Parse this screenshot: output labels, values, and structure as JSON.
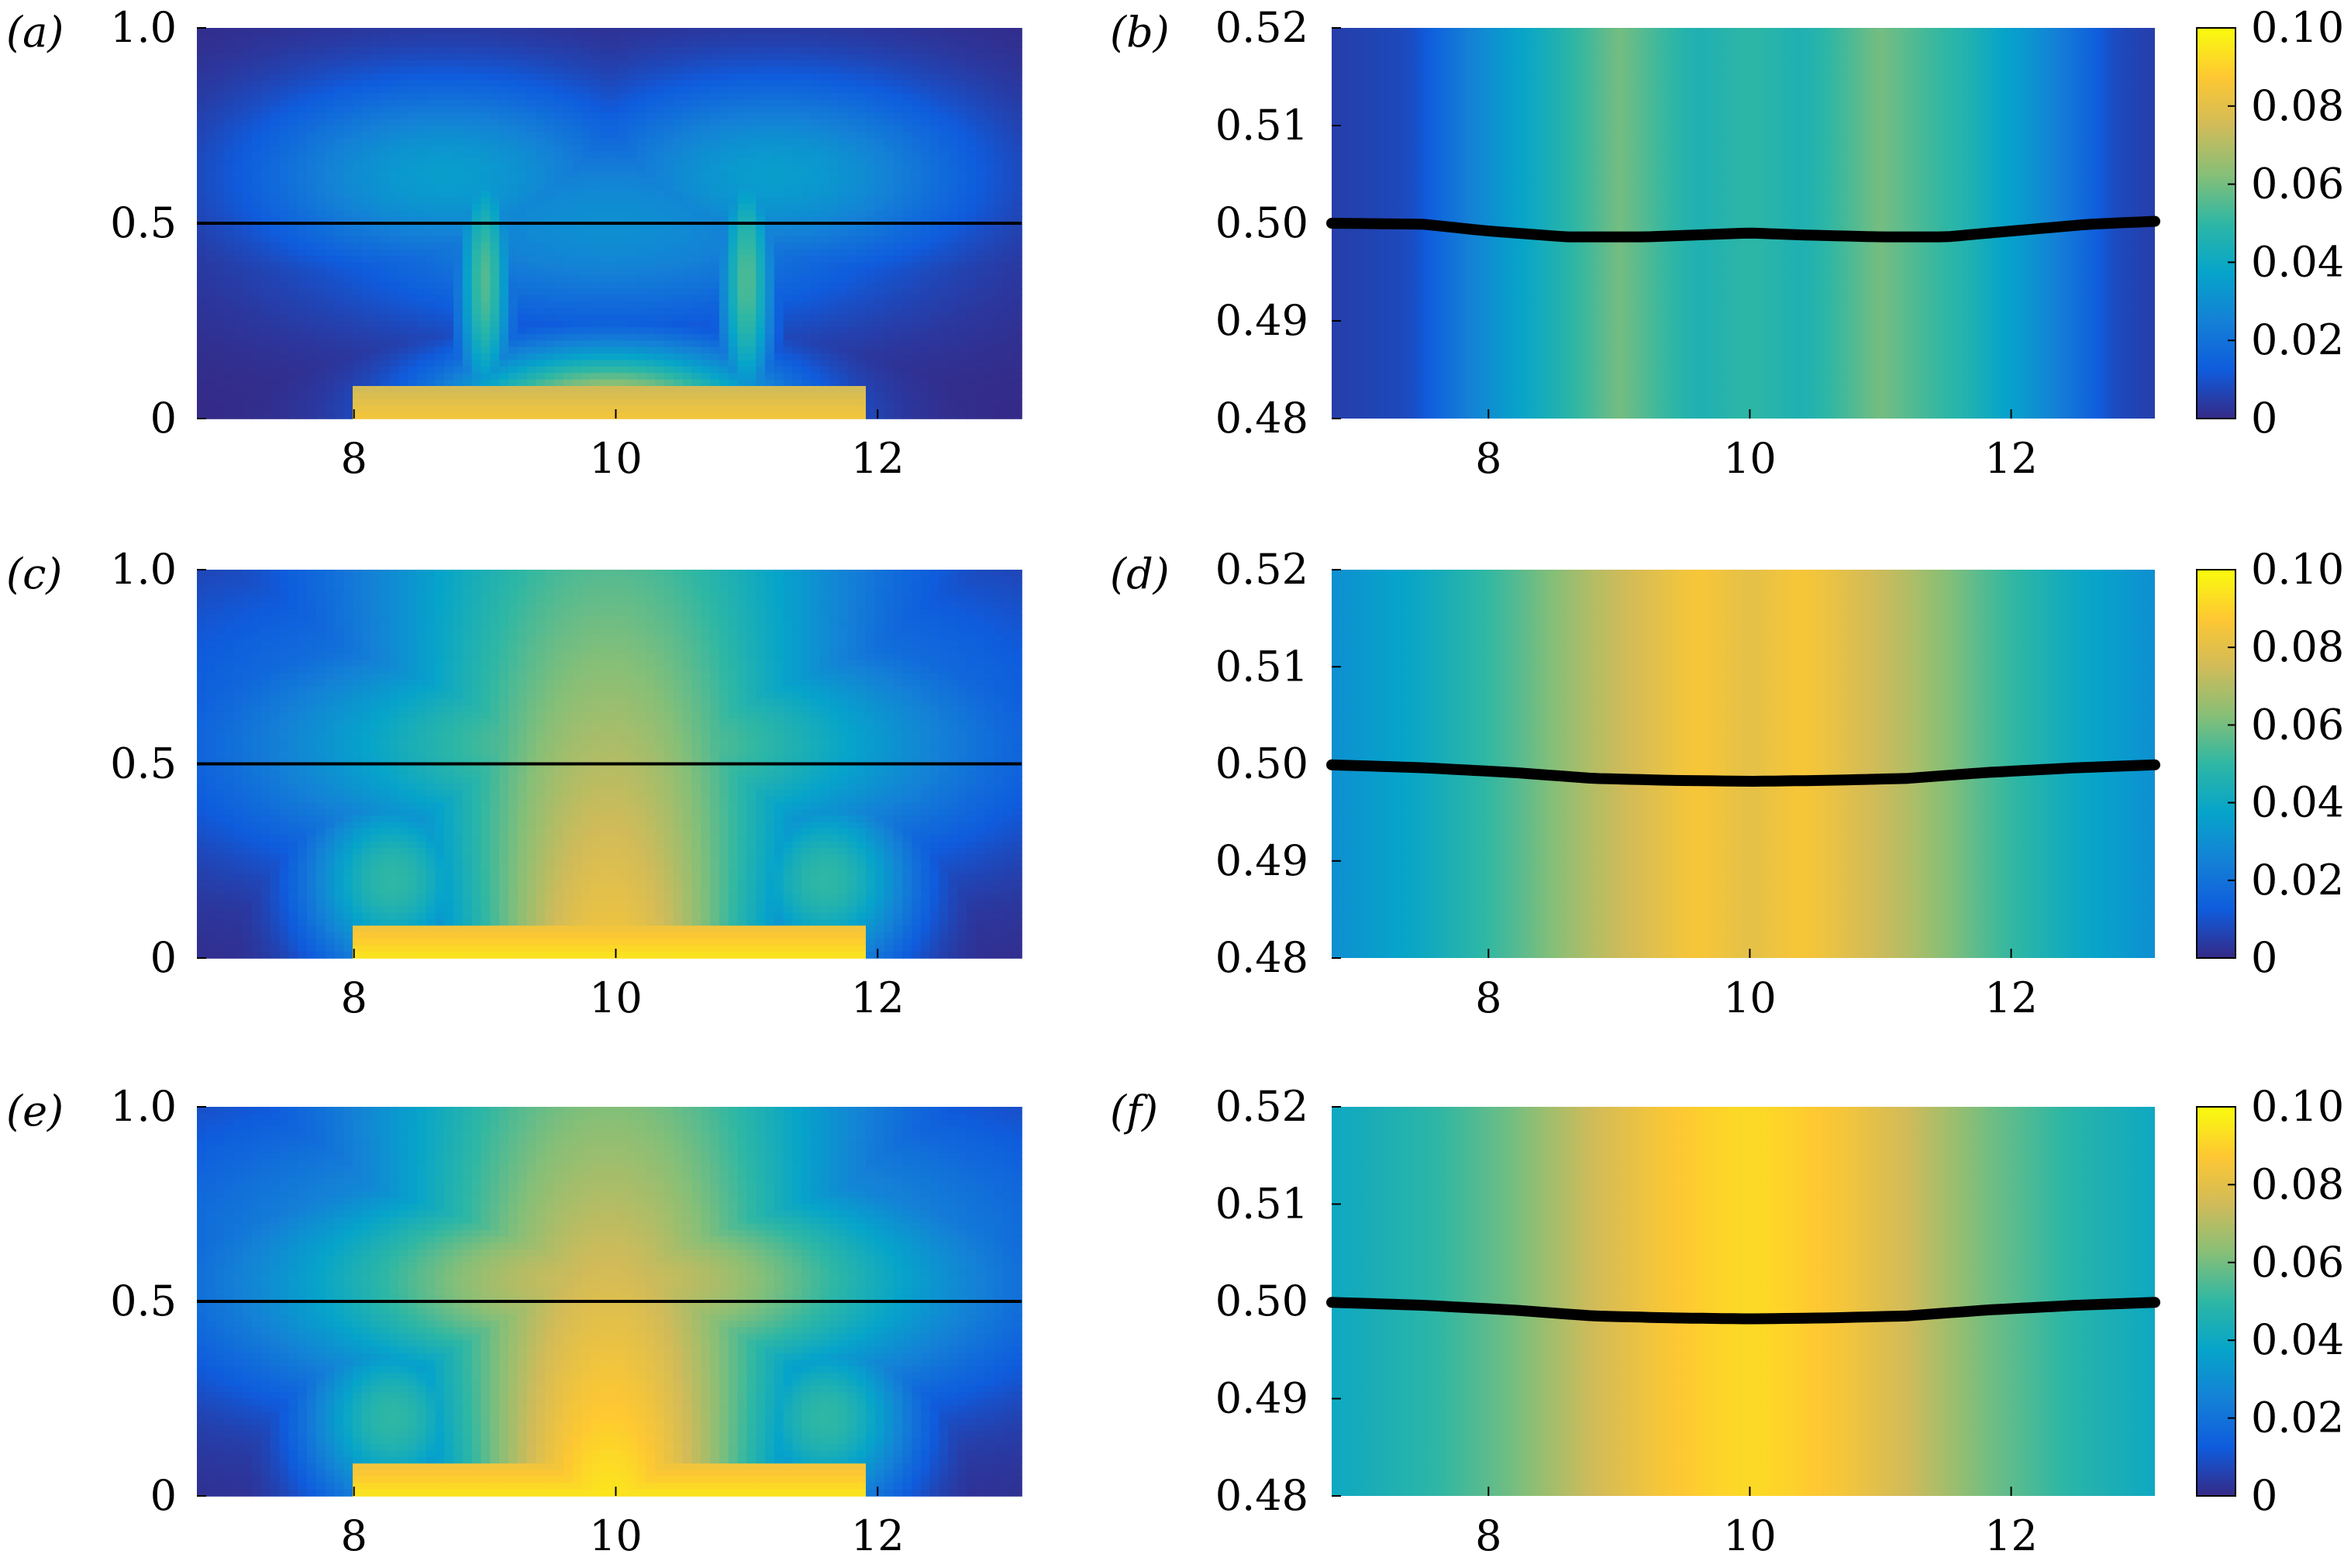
{
  "figure": {
    "panels": [
      "(a)",
      "(b)",
      "(c)",
      "(d)",
      "(e)",
      "(f)"
    ]
  },
  "colors": {
    "colormap": "parula",
    "parula_stops": [
      "#352a87",
      "#0f5cdd",
      "#1481d6",
      "#06a4ca",
      "#2eb7a4",
      "#87bf77",
      "#d1bb59",
      "#fec832",
      "#f9fb0e"
    ],
    "interface_line": "#000000",
    "background": "#ffffff"
  },
  "chart_data": [
    {
      "panel": "(a)",
      "type": "heatmap",
      "x_ticks": [
        "8",
        "10",
        "12"
      ],
      "y_ticks": [
        "0",
        "0.5",
        "1.0"
      ],
      "xlim": [
        6.8,
        13.1
      ],
      "ylim": [
        0,
        1.0
      ],
      "interface": {
        "x": [
          6.8,
          13.1
        ],
        "y": [
          0.5,
          0.5
        ]
      },
      "field_max": 0.09
    },
    {
      "panel": "(b)",
      "type": "heatmap",
      "x_ticks": [
        "8",
        "10",
        "12"
      ],
      "y_ticks": [
        "0.48",
        "0.49",
        "0.50",
        "0.51",
        "0.52"
      ],
      "xlim": [
        6.8,
        13.1
      ],
      "ylim": [
        0.48,
        0.52
      ],
      "colorbar": {
        "ticks": [
          "0",
          "0.02",
          "0.04",
          "0.06",
          "0.08",
          "0.10"
        ],
        "range": [
          0,
          0.1
        ]
      },
      "profile": {
        "x": [
          6.8,
          7.4,
          8.0,
          8.6,
          9.0,
          9.6,
          10.0,
          10.4,
          11.0,
          11.6,
          12.2,
          12.8,
          13.1
        ],
        "value": [
          0.005,
          0.008,
          0.03,
          0.048,
          0.06,
          0.045,
          0.05,
          0.045,
          0.06,
          0.048,
          0.03,
          0.008,
          0.005
        ]
      },
      "interface": {
        "x": [
          6.8,
          7.5,
          8.0,
          8.6,
          9.2,
          9.6,
          10.0,
          10.4,
          11.0,
          11.5,
          12.0,
          12.6,
          13.1
        ],
        "y": [
          0.5,
          0.4999,
          0.4992,
          0.4986,
          0.4986,
          0.4988,
          0.499,
          0.4988,
          0.4986,
          0.4986,
          0.4992,
          0.4999,
          0.5002
        ]
      }
    },
    {
      "panel": "(c)",
      "type": "heatmap",
      "x_ticks": [
        "8",
        "10",
        "12"
      ],
      "y_ticks": [
        "0",
        "0.5",
        "1.0"
      ],
      "xlim": [
        6.8,
        13.1
      ],
      "ylim": [
        0,
        1.0
      ],
      "interface": {
        "x": [
          6.8,
          13.1
        ],
        "y": [
          0.5,
          0.5
        ]
      },
      "field_max": 0.094
    },
    {
      "panel": "(d)",
      "type": "heatmap",
      "x_ticks": [
        "8",
        "10",
        "12"
      ],
      "y_ticks": [
        "0.48",
        "0.49",
        "0.50",
        "0.51",
        "0.52"
      ],
      "xlim": [
        6.8,
        13.1
      ],
      "ylim": [
        0.48,
        0.52
      ],
      "colorbar": {
        "ticks": [
          "0",
          "0.02",
          "0.04",
          "0.06",
          "0.08",
          "0.10"
        ],
        "range": [
          0,
          0.1
        ]
      },
      "profile": {
        "x": [
          6.8,
          7.5,
          8.2,
          8.8,
          9.3,
          9.6,
          10.0,
          10.4,
          10.7,
          11.2,
          11.8,
          12.5,
          13.1
        ],
        "value": [
          0.03,
          0.04,
          0.055,
          0.07,
          0.08,
          0.086,
          0.08,
          0.086,
          0.08,
          0.07,
          0.055,
          0.04,
          0.03
        ]
      },
      "interface": {
        "x": [
          6.8,
          7.5,
          8.2,
          8.8,
          9.4,
          10.0,
          10.6,
          11.2,
          11.8,
          12.5,
          13.1
        ],
        "y": [
          0.4999,
          0.4996,
          0.4991,
          0.4985,
          0.4983,
          0.4982,
          0.4983,
          0.4985,
          0.4991,
          0.4996,
          0.4999
        ]
      }
    },
    {
      "panel": "(e)",
      "type": "heatmap",
      "x_ticks": [
        "8",
        "10",
        "12"
      ],
      "y_ticks": [
        "0",
        "0.5",
        "1.0"
      ],
      "xlim": [
        6.8,
        13.1
      ],
      "ylim": [
        0,
        1.0
      ],
      "interface": {
        "x": [
          6.8,
          13.1
        ],
        "y": [
          0.5,
          0.5
        ]
      },
      "field_max": 0.1
    },
    {
      "panel": "(f)",
      "type": "heatmap",
      "x_ticks": [
        "8",
        "10",
        "12"
      ],
      "y_ticks": [
        "0.48",
        "0.49",
        "0.50",
        "0.51",
        "0.52"
      ],
      "xlim": [
        6.8,
        13.1
      ],
      "ylim": [
        0.48,
        0.52
      ],
      "colorbar": {
        "ticks": [
          "0",
          "0.02",
          "0.04",
          "0.06",
          "0.08",
          "0.10"
        ],
        "range": [
          0,
          0.1
        ]
      },
      "profile": {
        "x": [
          6.8,
          7.5,
          8.2,
          8.8,
          9.3,
          9.7,
          10.0,
          10.3,
          10.7,
          11.2,
          11.8,
          12.5,
          13.1
        ],
        "value": [
          0.04,
          0.048,
          0.06,
          0.075,
          0.085,
          0.09,
          0.092,
          0.09,
          0.085,
          0.075,
          0.06,
          0.048,
          0.04
        ]
      },
      "interface": {
        "x": [
          6.8,
          7.5,
          8.2,
          8.8,
          9.4,
          10.0,
          10.6,
          11.2,
          11.8,
          12.5,
          13.1
        ],
        "y": [
          0.4999,
          0.4996,
          0.4991,
          0.4985,
          0.4983,
          0.4982,
          0.4983,
          0.4985,
          0.4991,
          0.4996,
          0.4999
        ]
      }
    }
  ]
}
